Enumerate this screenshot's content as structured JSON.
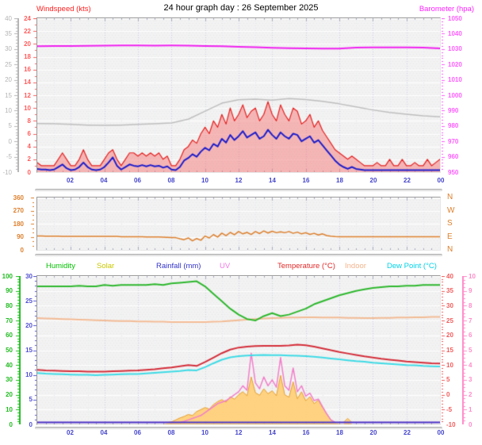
{
  "title": "24 hour graph day : 26 September 2025",
  "x_labels": [
    "02",
    "04",
    "06",
    "08",
    "10",
    "12",
    "14",
    "16",
    "18",
    "20",
    "22",
    "00"
  ],
  "x_label_color": "#4444CC",
  "legend": {
    "items": [
      {
        "label": "Humidity",
        "color": "#00C000"
      },
      {
        "label": "Solar",
        "color": "#C8C800"
      },
      {
        "label": "Rainfall (mm)",
        "color": "#3232C8"
      },
      {
        "label": "UV",
        "color": "#F078E6"
      },
      {
        "label": "Temperature (°C)",
        "color": "#E02828"
      },
      {
        "label": "Indoor",
        "color": "#F2B48C"
      },
      {
        "label": "Dew Point (°C)",
        "color": "#00D2E6"
      }
    ]
  },
  "panels": {
    "top": {
      "title_left": "Windspeed (kts)",
      "title_right": "Barometer (hpa)",
      "axes": {
        "gray": {
          "name": "gray-trend",
          "min": -10,
          "max": 40,
          "label_step": 5,
          "minor": 1,
          "color": "#B4B4B4"
        },
        "wind": {
          "name": "windspeed-kts",
          "min": 0,
          "max": 24,
          "label_step": 2,
          "minor": 1,
          "color": "#FF5C5C"
        },
        "baro": {
          "name": "barometer-hpa",
          "min": 950,
          "max": 1050,
          "label_step": 10,
          "minor": 2,
          "color": "#FF5CFF"
        }
      }
    },
    "middle": {
      "axis": {
        "name": "wind-direction-deg",
        "min": 0,
        "max": 360,
        "label_step": 90,
        "minor": 30,
        "color": "#DD7F2B"
      },
      "compass": [
        "N",
        "W",
        "S",
        "E",
        "N"
      ]
    },
    "bottom": {
      "axes": {
        "humidity": {
          "name": "humidity-pct",
          "min": 0,
          "max": 100,
          "label_step": 10,
          "minor": 2,
          "color": "#22BB22"
        },
        "rain": {
          "name": "rainfall-mm",
          "min": 0,
          "max": 30,
          "label_step": 5,
          "minor": 1,
          "color": "#5050D0"
        },
        "temp": {
          "name": "temperature-c",
          "min": -10,
          "max": 40,
          "label_step": 5,
          "minor": 1,
          "color": "#F25C5C"
        },
        "uv": {
          "name": "uv-index",
          "min": 0,
          "max": 10,
          "label_step": 1,
          "minor": 0.25,
          "color": "#FF8CC8"
        }
      }
    }
  },
  "chart_data": [
    {
      "type": "line",
      "title": "Windspeed and Barometer",
      "x_unit": "hour",
      "x_range": [
        0,
        24
      ],
      "series": [
        {
          "name": "gray_trend",
          "axis": "gray",
          "color": "#BEBEBE",
          "width": 1.5,
          "step_h": 1,
          "values": [
            5.8,
            5.7,
            5.5,
            5.3,
            5.2,
            5.3,
            5.5,
            5.7,
            6.0,
            7.2,
            9.8,
            12.4,
            13.5,
            13.7,
            13.4,
            13.9,
            13.6,
            13.0,
            12.2,
            11.2,
            10.2,
            9.4,
            8.8,
            8.3,
            8.0
          ]
        },
        {
          "name": "wind_gust_kts",
          "axis": "wind",
          "color": "#E62020",
          "fill": "rgba(245,120,120,0.5)",
          "width": 1.2,
          "step_h": 0.25,
          "values": [
            1.5,
            1,
            1,
            1,
            1,
            2,
            3,
            2,
            1,
            1,
            2,
            3.5,
            2,
            1,
            1,
            1,
            2,
            3,
            3.5,
            2,
            1,
            2,
            3,
            3,
            2.5,
            3,
            2.5,
            3,
            2.5,
            3,
            2,
            2.5,
            1,
            1,
            2,
            3.5,
            4,
            5,
            4.5,
            6,
            7,
            6,
            8,
            7,
            9,
            7.5,
            10,
            8,
            9,
            10.5,
            8.5,
            9.5,
            10,
            8,
            9,
            11,
            9,
            8,
            10.5,
            9,
            8,
            10,
            9.5,
            7.5,
            8,
            9,
            7,
            8,
            6.5,
            5.5,
            4.5,
            3.5,
            3,
            2.5,
            2,
            2.5,
            2,
            1.5,
            1,
            1,
            1,
            1.5,
            1,
            1,
            2,
            1,
            1,
            2,
            1,
            1,
            1.5,
            1,
            1,
            2,
            1,
            1.5,
            2
          ]
        },
        {
          "name": "wind_avg_kts",
          "axis": "wind",
          "color": "#1E1ECC",
          "width": 2,
          "step_h": 0.25,
          "values": [
            0.5,
            0.4,
            0.4,
            0.3,
            0.4,
            0.8,
            1.2,
            0.6,
            0.3,
            0.4,
            0.8,
            1.5,
            0.8,
            0.4,
            0.3,
            0.4,
            0.8,
            1.5,
            2.3,
            1.0,
            0.4,
            0.8,
            1.2,
            1.0,
            0.9,
            1.1,
            0.9,
            1.1,
            0.9,
            1.0,
            0.7,
            0.9,
            0.4,
            0.3,
            0.8,
            1.8,
            2.2,
            2.8,
            2.4,
            3.2,
            3.8,
            3.4,
            4.4,
            4.0,
            5.2,
            4.6,
            5.8,
            5.0,
            5.6,
            6.4,
            5.4,
            5.8,
            6.2,
            5.2,
            5.6,
            6.6,
            5.8,
            5.2,
            6.2,
            5.6,
            5.2,
            6.0,
            5.8,
            4.8,
            5.2,
            5.6,
            4.6,
            5.0,
            4.2,
            3.4,
            2.6,
            1.8,
            1.2,
            0.8,
            0.5,
            0.8,
            0.5,
            0.4,
            0.3,
            0.3,
            0.3,
            0.3,
            0.3,
            0.3,
            0.3,
            0.3,
            0.3,
            0.3,
            0.3,
            0.3,
            0.3,
            0.3,
            0.3,
            0.3,
            0.3,
            0.3,
            0.3
          ]
        },
        {
          "name": "barometer_hpa",
          "axis": "baro",
          "color": "#F020F0",
          "width": 2,
          "step_h": 1,
          "values": [
            1031.8,
            1031.9,
            1032.0,
            1032.1,
            1032.2,
            1032.3,
            1032.3,
            1032.2,
            1032.3,
            1032.2,
            1032.0,
            1031.8,
            1031.5,
            1031.2,
            1030.8,
            1030.6,
            1030.4,
            1030.3,
            1030.3,
            1030.9,
            1031.0,
            1031.0,
            1031.0,
            1030.9,
            1030.4
          ]
        }
      ]
    },
    {
      "type": "line",
      "title": "Wind Direction",
      "x_unit": "hour",
      "x_range": [
        0,
        24
      ],
      "series": [
        {
          "name": "direction_deg",
          "axis": "dir",
          "color": "#DD7F2B",
          "width": 1.5,
          "step_h": 0.25,
          "values": [
            95,
            95,
            94,
            94,
            94,
            94,
            93,
            93,
            93,
            93,
            93,
            93,
            93,
            93,
            93,
            93,
            93,
            93,
            93,
            93,
            90,
            90,
            90,
            90,
            90,
            90,
            89,
            89,
            88,
            88,
            87,
            86,
            85,
            84,
            76,
            70,
            82,
            62,
            78,
            66,
            95,
            82,
            105,
            88,
            115,
            98,
            120,
            104,
            126,
            110,
            120,
            106,
            126,
            112,
            130,
            116,
            128,
            118,
            124,
            118,
            126,
            114,
            122,
            110,
            118,
            106,
            114,
            102,
            110,
            98,
            94,
            91,
            90,
            90,
            90,
            90,
            90,
            90,
            90,
            90,
            90,
            90,
            90,
            90,
            90,
            90,
            90,
            90,
            90,
            90,
            90,
            90,
            90,
            90,
            90,
            90,
            90
          ]
        }
      ]
    },
    {
      "type": "line",
      "title": "Humidity, Solar, Rainfall, UV, Temperature, Indoor, Dew Point",
      "x_unit": "hour",
      "x_range": [
        0,
        24
      ],
      "series": [
        {
          "name": "solar",
          "axis": "rain",
          "color": "#E8A030",
          "fill": "rgba(255,206,115,0.9)",
          "width": 1,
          "step_h": 0.25,
          "values": [
            0,
            0,
            0,
            0,
            0,
            0,
            0,
            0,
            0,
            0,
            0,
            0,
            0,
            0,
            0,
            0,
            0,
            0,
            0,
            0,
            0,
            0,
            0,
            0,
            0,
            0,
            0,
            0,
            0,
            0,
            0,
            0.2,
            0.5,
            0.9,
            1.3,
            1.6,
            2.0,
            1.8,
            2.6,
            3.0,
            3.4,
            3.1,
            4.0,
            4.6,
            5.0,
            4.5,
            5.6,
            5.1,
            6.0,
            6.6,
            5.8,
            9.6,
            6.4,
            5.9,
            7.2,
            6.2,
            6.8,
            5.8,
            9.9,
            6.0,
            5.5,
            8.6,
            5.2,
            6.6,
            4.8,
            5.6,
            4.2,
            4.9,
            3.4,
            2.2,
            0.9,
            0.3,
            0.1,
            0,
            1.2,
            0,
            0,
            0,
            0,
            0,
            0,
            0,
            0,
            0,
            0,
            0,
            0,
            0,
            0,
            0,
            0,
            0,
            0,
            0,
            0,
            0,
            0
          ]
        },
        {
          "name": "uv_index",
          "axis": "uv",
          "color": "#F27ECB",
          "width": 1.5,
          "step_h": 0.25,
          "values": [
            0,
            0,
            0,
            0,
            0,
            0,
            0,
            0,
            0,
            0,
            0,
            0,
            0,
            0,
            0,
            0,
            0,
            0,
            0,
            0,
            0,
            0,
            0,
            0,
            0,
            0,
            0,
            0,
            0,
            0,
            0,
            0,
            0,
            0,
            0.1,
            0.2,
            0.3,
            0.4,
            0.5,
            0.6,
            0.8,
            1.0,
            1.2,
            1.4,
            1.5,
            1.6,
            1.8,
            2.0,
            2.2,
            2.6,
            2.3,
            4.8,
            2.8,
            2.4,
            3.2,
            2.6,
            3.0,
            2.5,
            4.5,
            2.6,
            2.3,
            3.8,
            2.2,
            2.6,
            1.9,
            2.1,
            1.6,
            1.7,
            1.2,
            0.7,
            0.3,
            0.1,
            0,
            0,
            0,
            0,
            0,
            0,
            0,
            0,
            0,
            0,
            0,
            0,
            0,
            0,
            0,
            0,
            0,
            0,
            0,
            0,
            0,
            0,
            0,
            0,
            0
          ]
        },
        {
          "name": "rainfall_mm",
          "axis": "rain",
          "color": "#4A3AC8",
          "width": 2,
          "step_h": 24,
          "values": [
            0,
            0
          ]
        },
        {
          "name": "indoor",
          "axis": "temp",
          "color": "#F2BB95",
          "width": 2,
          "step_h": 0.5,
          "values": [
            25.8,
            25.7,
            25.6,
            25.5,
            25.4,
            25.3,
            25.2,
            25.1,
            25.0,
            24.9,
            24.8,
            24.8,
            24.7,
            24.7,
            24.6,
            24.6,
            24.5,
            24.5,
            24.5,
            24.5,
            24.5,
            24.6,
            24.7,
            24.9,
            25.1,
            25.3,
            25.5,
            25.7,
            25.8,
            25.9,
            26.0,
            26.0,
            26.1,
            26.1,
            26.0,
            26.0,
            26.0,
            25.9,
            25.9,
            25.8,
            25.8,
            25.9,
            25.9,
            26.0,
            26.0,
            26.1,
            26.1,
            26.2,
            26.2
          ]
        },
        {
          "name": "dew_point_c",
          "axis": "temp",
          "color": "#3EDBE6",
          "width": 2,
          "step_h": 0.5,
          "values": [
            7.3,
            7.1,
            7.0,
            6.9,
            6.8,
            6.7,
            6.7,
            6.6,
            6.7,
            6.8,
            6.9,
            7.0,
            7.0,
            7.2,
            7.4,
            7.6,
            7.8,
            8.0,
            8.3,
            8.2,
            9.3,
            10.6,
            11.8,
            12.6,
            13.0,
            13.2,
            13.3,
            13.4,
            13.3,
            13.3,
            13.2,
            13.1,
            13.0,
            12.8,
            12.5,
            12.2,
            11.9,
            11.6,
            11.3,
            11.1,
            10.8,
            10.6,
            10.4,
            10.2,
            10.0,
            9.9,
            9.7,
            9.6,
            9.5
          ]
        },
        {
          "name": "temperature_c",
          "axis": "temp",
          "color": "#D42E3A",
          "width": 2,
          "step_h": 0.5,
          "values": [
            8.4,
            8.2,
            8.1,
            8.0,
            7.9,
            7.9,
            7.8,
            7.8,
            7.8,
            7.9,
            8.0,
            8.1,
            8.2,
            8.4,
            8.6,
            8.9,
            9.2,
            9.6,
            10.0,
            9.7,
            11.0,
            12.5,
            14.0,
            15.2,
            15.9,
            16.2,
            16.4,
            16.5,
            16.5,
            16.5,
            16.6,
            16.9,
            16.7,
            16.2,
            15.6,
            15.0,
            14.4,
            13.9,
            13.4,
            12.9,
            12.5,
            12.1,
            11.8,
            11.5,
            11.2,
            11.0,
            10.8,
            10.6,
            10.5
          ]
        },
        {
          "name": "humidity_pct",
          "axis": "humidity",
          "color": "#2EB82E",
          "width": 2,
          "step_h": 0.5,
          "values": [
            93,
            93,
            93,
            93,
            93,
            93.5,
            93,
            93,
            94,
            93.5,
            94,
            94,
            94,
            94,
            94.5,
            94,
            95,
            95.5,
            96,
            96.5,
            93,
            88,
            83,
            78,
            74,
            71,
            70,
            73,
            75,
            73,
            74,
            76,
            78,
            81,
            83,
            85,
            87,
            88.5,
            90,
            91,
            92,
            92.5,
            93,
            93,
            93.5,
            93.5,
            94,
            94,
            94
          ]
        }
      ]
    }
  ]
}
